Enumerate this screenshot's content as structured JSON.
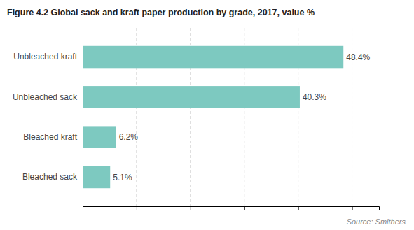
{
  "chart_data": {
    "type": "bar",
    "orientation": "horizontal",
    "title": "Figure 4.2 Global sack and kraft paper production by grade, 2017, value %",
    "categories": [
      "Bleached sack",
      "Bleached kraft",
      "Unbleached sack",
      "Unbleached kraft"
    ],
    "values": [
      5.1,
      6.2,
      40.3,
      48.4
    ],
    "value_labels": [
      "5.1%",
      "6.2%",
      "40.3%",
      "48.4%"
    ],
    "data_labels": true,
    "color": "#7dc9c0",
    "xlim": [
      0,
      55
    ],
    "xticks": [
      10,
      20,
      30,
      40,
      50
    ],
    "grid": true,
    "tick_labels": "y",
    "annotations": [
      "Source: Smithers"
    ]
  }
}
